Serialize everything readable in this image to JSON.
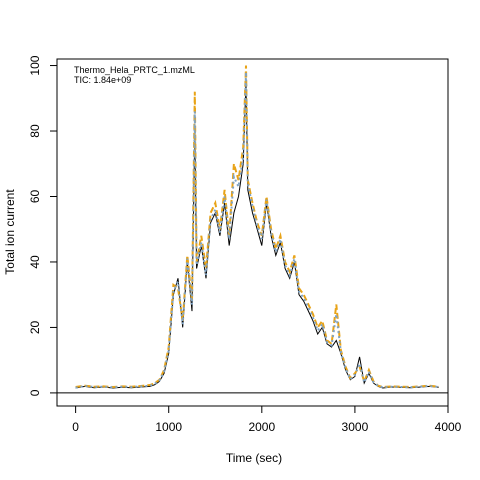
{
  "chart_data": {
    "type": "line",
    "xlabel": "Time (sec)",
    "ylabel": "Total ion current",
    "xlim": [
      -200,
      4000
    ],
    "ylim": [
      -4,
      102
    ],
    "x_ticks": [
      0,
      1000,
      2000,
      3000,
      4000
    ],
    "y_ticks": [
      0,
      20,
      40,
      60,
      80,
      100
    ],
    "baseline_y": 0,
    "annotation": {
      "file": "Thermo_Hela_PRTC_1.mzML",
      "tic": "TIC: 1.84e+09"
    },
    "series": [
      {
        "color": "#000000",
        "dash": "",
        "x": [
          0,
          100,
          200,
          300,
          400,
          500,
          600,
          700,
          800,
          850,
          900,
          950,
          1000,
          1050,
          1100,
          1150,
          1200,
          1250,
          1280,
          1300,
          1350,
          1400,
          1450,
          1500,
          1550,
          1600,
          1650,
          1700,
          1750,
          1800,
          1830,
          1850,
          1900,
          1950,
          2000,
          2050,
          2100,
          2150,
          2200,
          2250,
          2300,
          2350,
          2400,
          2450,
          2500,
          2550,
          2600,
          2650,
          2700,
          2750,
          2800,
          2850,
          2900,
          2950,
          3000,
          3050,
          3100,
          3150,
          3200,
          3250,
          3300,
          3400,
          3600,
          3800,
          3900
        ],
        "y": [
          1.5,
          2.0,
          1.6,
          1.8,
          1.5,
          1.7,
          1.6,
          1.8,
          2.0,
          2.5,
          3.5,
          6.0,
          12.0,
          30.0,
          35.0,
          20.0,
          40.0,
          25.0,
          80.0,
          38.0,
          45.0,
          35.0,
          52.0,
          55.0,
          48.0,
          58.0,
          45.0,
          55.0,
          60.0,
          70.0,
          95.0,
          62.0,
          55.0,
          50.0,
          45.0,
          58.0,
          48.0,
          42.0,
          46.0,
          38.0,
          35.0,
          40.0,
          30.0,
          28.0,
          25.0,
          22.0,
          18.0,
          20.0,
          15.0,
          14.0,
          16.0,
          12.0,
          7.0,
          4.0,
          5.0,
          11.0,
          3.0,
          6.0,
          3.0,
          2.0,
          1.5,
          1.8,
          1.6,
          2.0,
          1.7
        ]
      },
      {
        "color": "#e8a317",
        "dash": "6 3",
        "x": [
          0,
          100,
          200,
          300,
          400,
          500,
          600,
          700,
          800,
          850,
          900,
          950,
          1000,
          1050,
          1100,
          1150,
          1200,
          1250,
          1280,
          1300,
          1350,
          1400,
          1450,
          1500,
          1550,
          1600,
          1650,
          1700,
          1750,
          1800,
          1830,
          1850,
          1900,
          1950,
          2000,
          2050,
          2100,
          2150,
          2200,
          2250,
          2300,
          2350,
          2400,
          2450,
          2500,
          2550,
          2600,
          2650,
          2700,
          2750,
          2800,
          2850,
          2900,
          2950,
          3000,
          3050,
          3100,
          3150,
          3200,
          3250,
          3300,
          3400,
          3600,
          3800,
          3900
        ],
        "y": [
          1.8,
          2.2,
          1.9,
          2.0,
          1.8,
          2.0,
          1.9,
          2.1,
          2.4,
          3.0,
          4.0,
          7.0,
          14.0,
          33.0,
          32.0,
          22.0,
          42.0,
          28.0,
          92.0,
          40.0,
          48.0,
          38.0,
          55.0,
          58.0,
          50.0,
          62.0,
          48.0,
          70.0,
          65.0,
          75.0,
          100.0,
          65.0,
          58.0,
          52.0,
          48.0,
          60.0,
          50.0,
          44.0,
          48.0,
          40.0,
          37.0,
          42.0,
          32.0,
          30.0,
          27.0,
          24.0,
          20.0,
          22.0,
          16.0,
          15.0,
          27.0,
          13.0,
          8.0,
          4.5,
          6.0,
          8.0,
          3.5,
          7.0,
          3.5,
          2.2,
          1.8,
          2.0,
          1.8,
          2.2,
          1.9
        ]
      },
      {
        "color": "#7fa3c4",
        "dash": "2 3",
        "x": [
          0,
          100,
          200,
          300,
          400,
          500,
          600,
          700,
          800,
          850,
          900,
          950,
          1000,
          1050,
          1100,
          1150,
          1200,
          1250,
          1280,
          1300,
          1350,
          1400,
          1450,
          1500,
          1550,
          1600,
          1650,
          1700,
          1750,
          1800,
          1830,
          1850,
          1900,
          1950,
          2000,
          2050,
          2100,
          2150,
          2200,
          2250,
          2300,
          2350,
          2400,
          2450,
          2500,
          2550,
          2600,
          2650,
          2700,
          2750,
          2800,
          2850,
          2900,
          2950,
          3000,
          3050,
          3100,
          3150,
          3200,
          3250,
          3300,
          3400,
          3600,
          3800,
          3900
        ],
        "y": [
          1.6,
          2.1,
          1.8,
          1.9,
          1.7,
          1.9,
          1.8,
          2.0,
          2.2,
          2.8,
          3.8,
          6.5,
          13.0,
          31.0,
          34.0,
          21.0,
          41.0,
          27.0,
          86.0,
          39.0,
          46.0,
          36.0,
          53.0,
          56.0,
          49.0,
          60.0,
          47.0,
          66.0,
          63.0,
          72.0,
          98.0,
          64.0,
          57.0,
          51.0,
          47.0,
          59.0,
          49.0,
          43.0,
          47.0,
          39.0,
          36.0,
          41.0,
          31.0,
          29.0,
          26.0,
          23.0,
          19.0,
          21.0,
          15.5,
          14.5,
          24.0,
          12.5,
          7.5,
          4.2,
          5.5,
          9.0,
          3.2,
          6.5,
          3.2,
          2.1,
          1.7,
          1.9,
          1.7,
          2.1,
          1.8
        ]
      }
    ]
  }
}
